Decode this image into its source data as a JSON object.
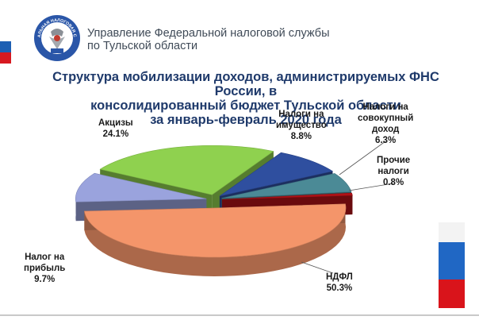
{
  "header": {
    "org_line1": "Управление Федеральной налоговой службы",
    "org_line2": "по Тульской области",
    "emblem_text": "ФЕДЕРАЛЬНАЯ НАЛОГОВАЯ СЛУЖБА"
  },
  "chart_data": {
    "type": "pie",
    "title_lines": [
      "Структура мобилизации доходов, администрируемых ФНС России, в",
      "консолидированный бюджет Тульской  области",
      "за январь-февраль  2020 года"
    ],
    "slices": [
      {
        "name_lines": [
          "НДФЛ"
        ],
        "value_label": "50.3%",
        "value": 50.3,
        "color": "#f4956a"
      },
      {
        "name_lines": [
          "Налог на",
          "прибыль"
        ],
        "value_label": "9.7%",
        "value": 9.7,
        "color": "#9aa3dd"
      },
      {
        "name_lines": [
          "Акцизы"
        ],
        "value_label": "24.1%",
        "value": 24.1,
        "color": "#8fd14f"
      },
      {
        "name_lines": [
          "Налоги на",
          "имущество"
        ],
        "value_label": "8.8%",
        "value": 8.8,
        "color": "#2f4f9f"
      },
      {
        "name_lines": [
          "Налоги на",
          "совокупный",
          "доход"
        ],
        "value_label": "6.3%",
        "value": 6.3,
        "color": "#4b8a96"
      },
      {
        "name_lines": [
          "Прочие",
          "налоги"
        ],
        "value_label": "0.8%",
        "value": 0.8,
        "color": "#b01217"
      }
    ]
  },
  "colors": {
    "title": "#1f3a6b",
    "org_text": "#3f4a57",
    "flag_blue": "#2067c4",
    "flag_red": "#d9141b"
  }
}
